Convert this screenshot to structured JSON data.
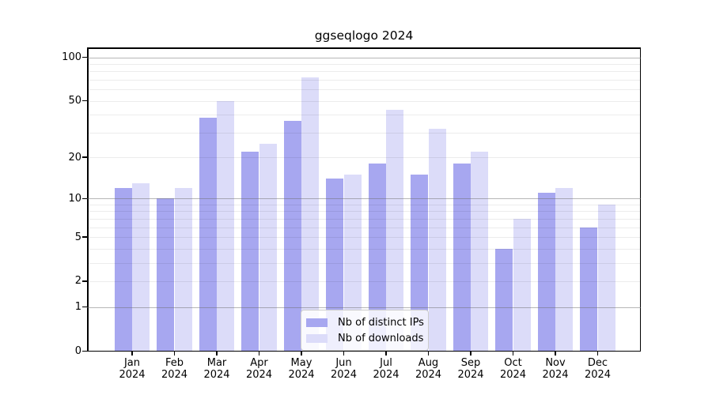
{
  "chart_data": {
    "type": "bar",
    "title": "ggseqlogo 2024",
    "categories": [
      "Jan",
      "Feb",
      "Mar",
      "Apr",
      "May",
      "Jun",
      "Jul",
      "Aug",
      "Sep",
      "Oct",
      "Nov",
      "Dec"
    ],
    "category_year": "2024",
    "series": [
      {
        "name": "Nb of distinct IPs",
        "color": "#a7a7f0",
        "values": [
          12,
          10,
          38,
          22,
          36,
          14,
          18,
          15,
          18,
          4,
          11,
          6
        ]
      },
      {
        "name": "Nb of downloads",
        "color": "#dcdcf9",
        "values": [
          13,
          12,
          50,
          25,
          73,
          15,
          43,
          32,
          22,
          7,
          12,
          9
        ]
      }
    ],
    "xlabel": "",
    "ylabel": "",
    "y_scale": "log1p",
    "ylim": [
      0,
      117
    ],
    "y_tick_labels": [
      100,
      50,
      20,
      10,
      5,
      2,
      1,
      0
    ],
    "y_major_gridlines": [
      1,
      10,
      100
    ],
    "y_minor_gridlines": [
      2,
      3,
      4,
      5,
      6,
      7,
      8,
      9,
      20,
      30,
      40,
      50,
      60,
      70,
      80,
      90
    ],
    "grid": true,
    "legend_position": "inside-bottom-center"
  },
  "colors": {
    "distinct_ips_bar": "#a7a7f0",
    "downloads_bar": "#dcdcf9",
    "major_grid": "#6e6e6e",
    "minor_grid": "#e8e8e8",
    "axis": "#000000",
    "legend_border": "#cccccc"
  }
}
